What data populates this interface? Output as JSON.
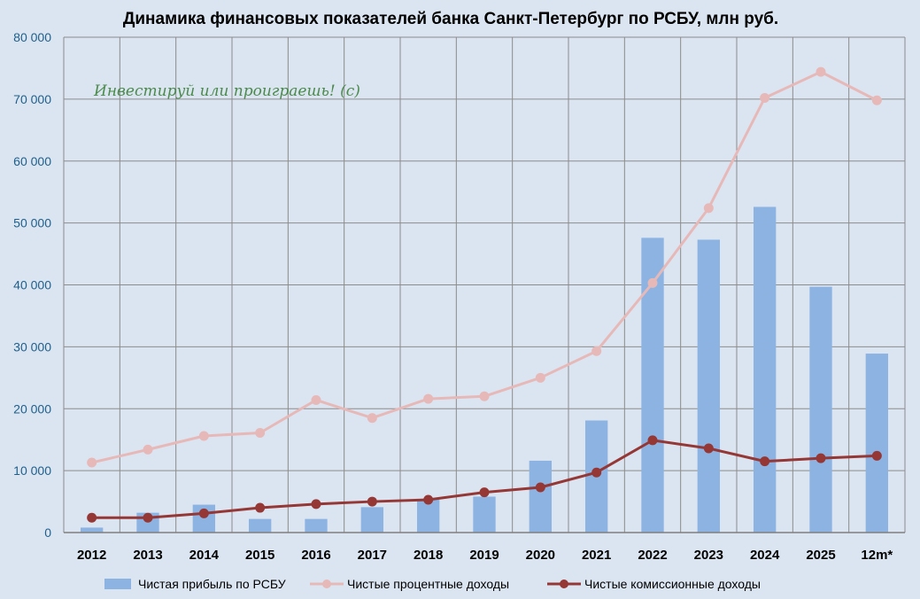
{
  "chart_data": {
    "type": "bar",
    "title": "Динамика финансовых показателей банка Санкт-Петербург по РСБУ, млн руб.",
    "xlabel": "",
    "ylabel": "",
    "categories": [
      "2012",
      "2013",
      "2014",
      "2015",
      "2016",
      "2017",
      "2018",
      "2019",
      "2020",
      "2021",
      "2022",
      "2023",
      "2024",
      "2025",
      "12m*"
    ],
    "ylim": [
      0,
      80000
    ],
    "yticks": [
      0,
      10000,
      20000,
      30000,
      40000,
      50000,
      60000,
      70000,
      80000
    ],
    "ytick_labels": [
      "0",
      "10 000",
      "20 000",
      "30 000",
      "40 000",
      "50 000",
      "60 000",
      "70 000",
      "80 000"
    ],
    "grid": true,
    "legend_position": "bottom",
    "series": [
      {
        "name": "Чистая прибыль по РСБУ",
        "kind": "bar",
        "color": "#8db3e2",
        "values": [
          800,
          3200,
          4500,
          2200,
          2200,
          4100,
          5300,
          5800,
          11600,
          18100,
          47600,
          47300,
          52600,
          39700,
          28900
        ]
      },
      {
        "name": "Чистые процентные доходы",
        "kind": "line",
        "color": "#e6b9b8",
        "values": [
          11300,
          13400,
          15600,
          16100,
          21400,
          18500,
          21600,
          22000,
          25000,
          29300,
          40300,
          52400,
          70200,
          74400,
          69800
        ]
      },
      {
        "name": "Чистые комиссионные доходы",
        "kind": "line",
        "color": "#953735",
        "values": [
          2400,
          2400,
          3100,
          4000,
          4600,
          5000,
          5300,
          6500,
          7300,
          9700,
          14900,
          13600,
          11500,
          12000,
          12400
        ]
      }
    ],
    "annotation": "Инвестируй или проиграешь! (c)"
  }
}
